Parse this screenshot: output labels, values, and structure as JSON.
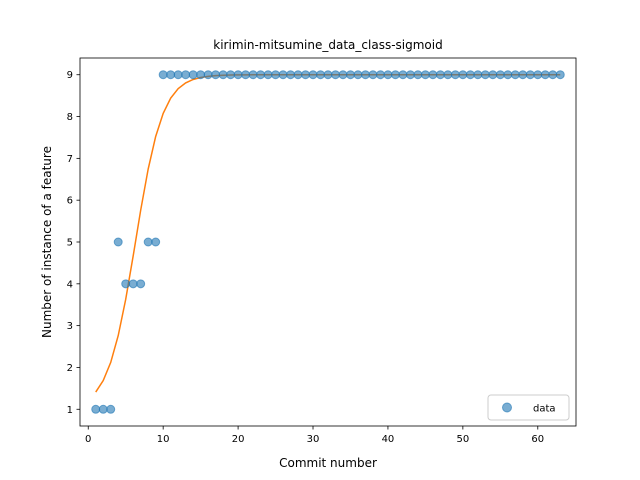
{
  "chart_data": {
    "type": "scatter",
    "title": "kirimin-mitsumine_data_class-sigmoid",
    "xlabel": "Commit number",
    "ylabel": "Number of instance of a feature",
    "xlim": [
      -1.1,
      65.1
    ],
    "ylim": [
      0.6,
      9.4
    ],
    "xticks": [
      0,
      10,
      20,
      30,
      40,
      50,
      60
    ],
    "yticks": [
      1,
      2,
      3,
      4,
      5,
      6,
      7,
      8,
      9
    ],
    "legend": {
      "position": "lower-right",
      "entries": [
        "data"
      ]
    },
    "grid": false,
    "series": [
      {
        "name": "data",
        "kind": "scatter",
        "color": "#1f77b4",
        "x": [
          1,
          2,
          3,
          4,
          5,
          6,
          7,
          8,
          9,
          10,
          11,
          12,
          13,
          14,
          15,
          16,
          17,
          18,
          19,
          20,
          21,
          22,
          23,
          24,
          25,
          26,
          27,
          28,
          29,
          30,
          31,
          32,
          33,
          34,
          35,
          36,
          37,
          38,
          39,
          40,
          41,
          42,
          43,
          44,
          45,
          46,
          47,
          48,
          49,
          50,
          51,
          52,
          53,
          54,
          55,
          56,
          57,
          58,
          59,
          60,
          61,
          62,
          63
        ],
        "y": [
          1,
          1,
          1,
          5,
          4,
          4,
          4,
          5,
          5,
          9,
          9,
          9,
          9,
          9,
          9,
          9,
          9,
          9,
          9,
          9,
          9,
          9,
          9,
          9,
          9,
          9,
          9,
          9,
          9,
          9,
          9,
          9,
          9,
          9,
          9,
          9,
          9,
          9,
          9,
          9,
          9,
          9,
          9,
          9,
          9,
          9,
          9,
          9,
          9,
          9,
          9,
          9,
          9,
          9,
          9,
          9,
          9,
          9,
          9,
          9,
          9,
          9,
          9
        ]
      },
      {
        "kind": "line",
        "color": "#ff7f0e",
        "sigmoid": {
          "L": 8,
          "k": 0.55,
          "x0": 6.3,
          "b": 1
        },
        "x_range": [
          1,
          63
        ]
      }
    ]
  }
}
